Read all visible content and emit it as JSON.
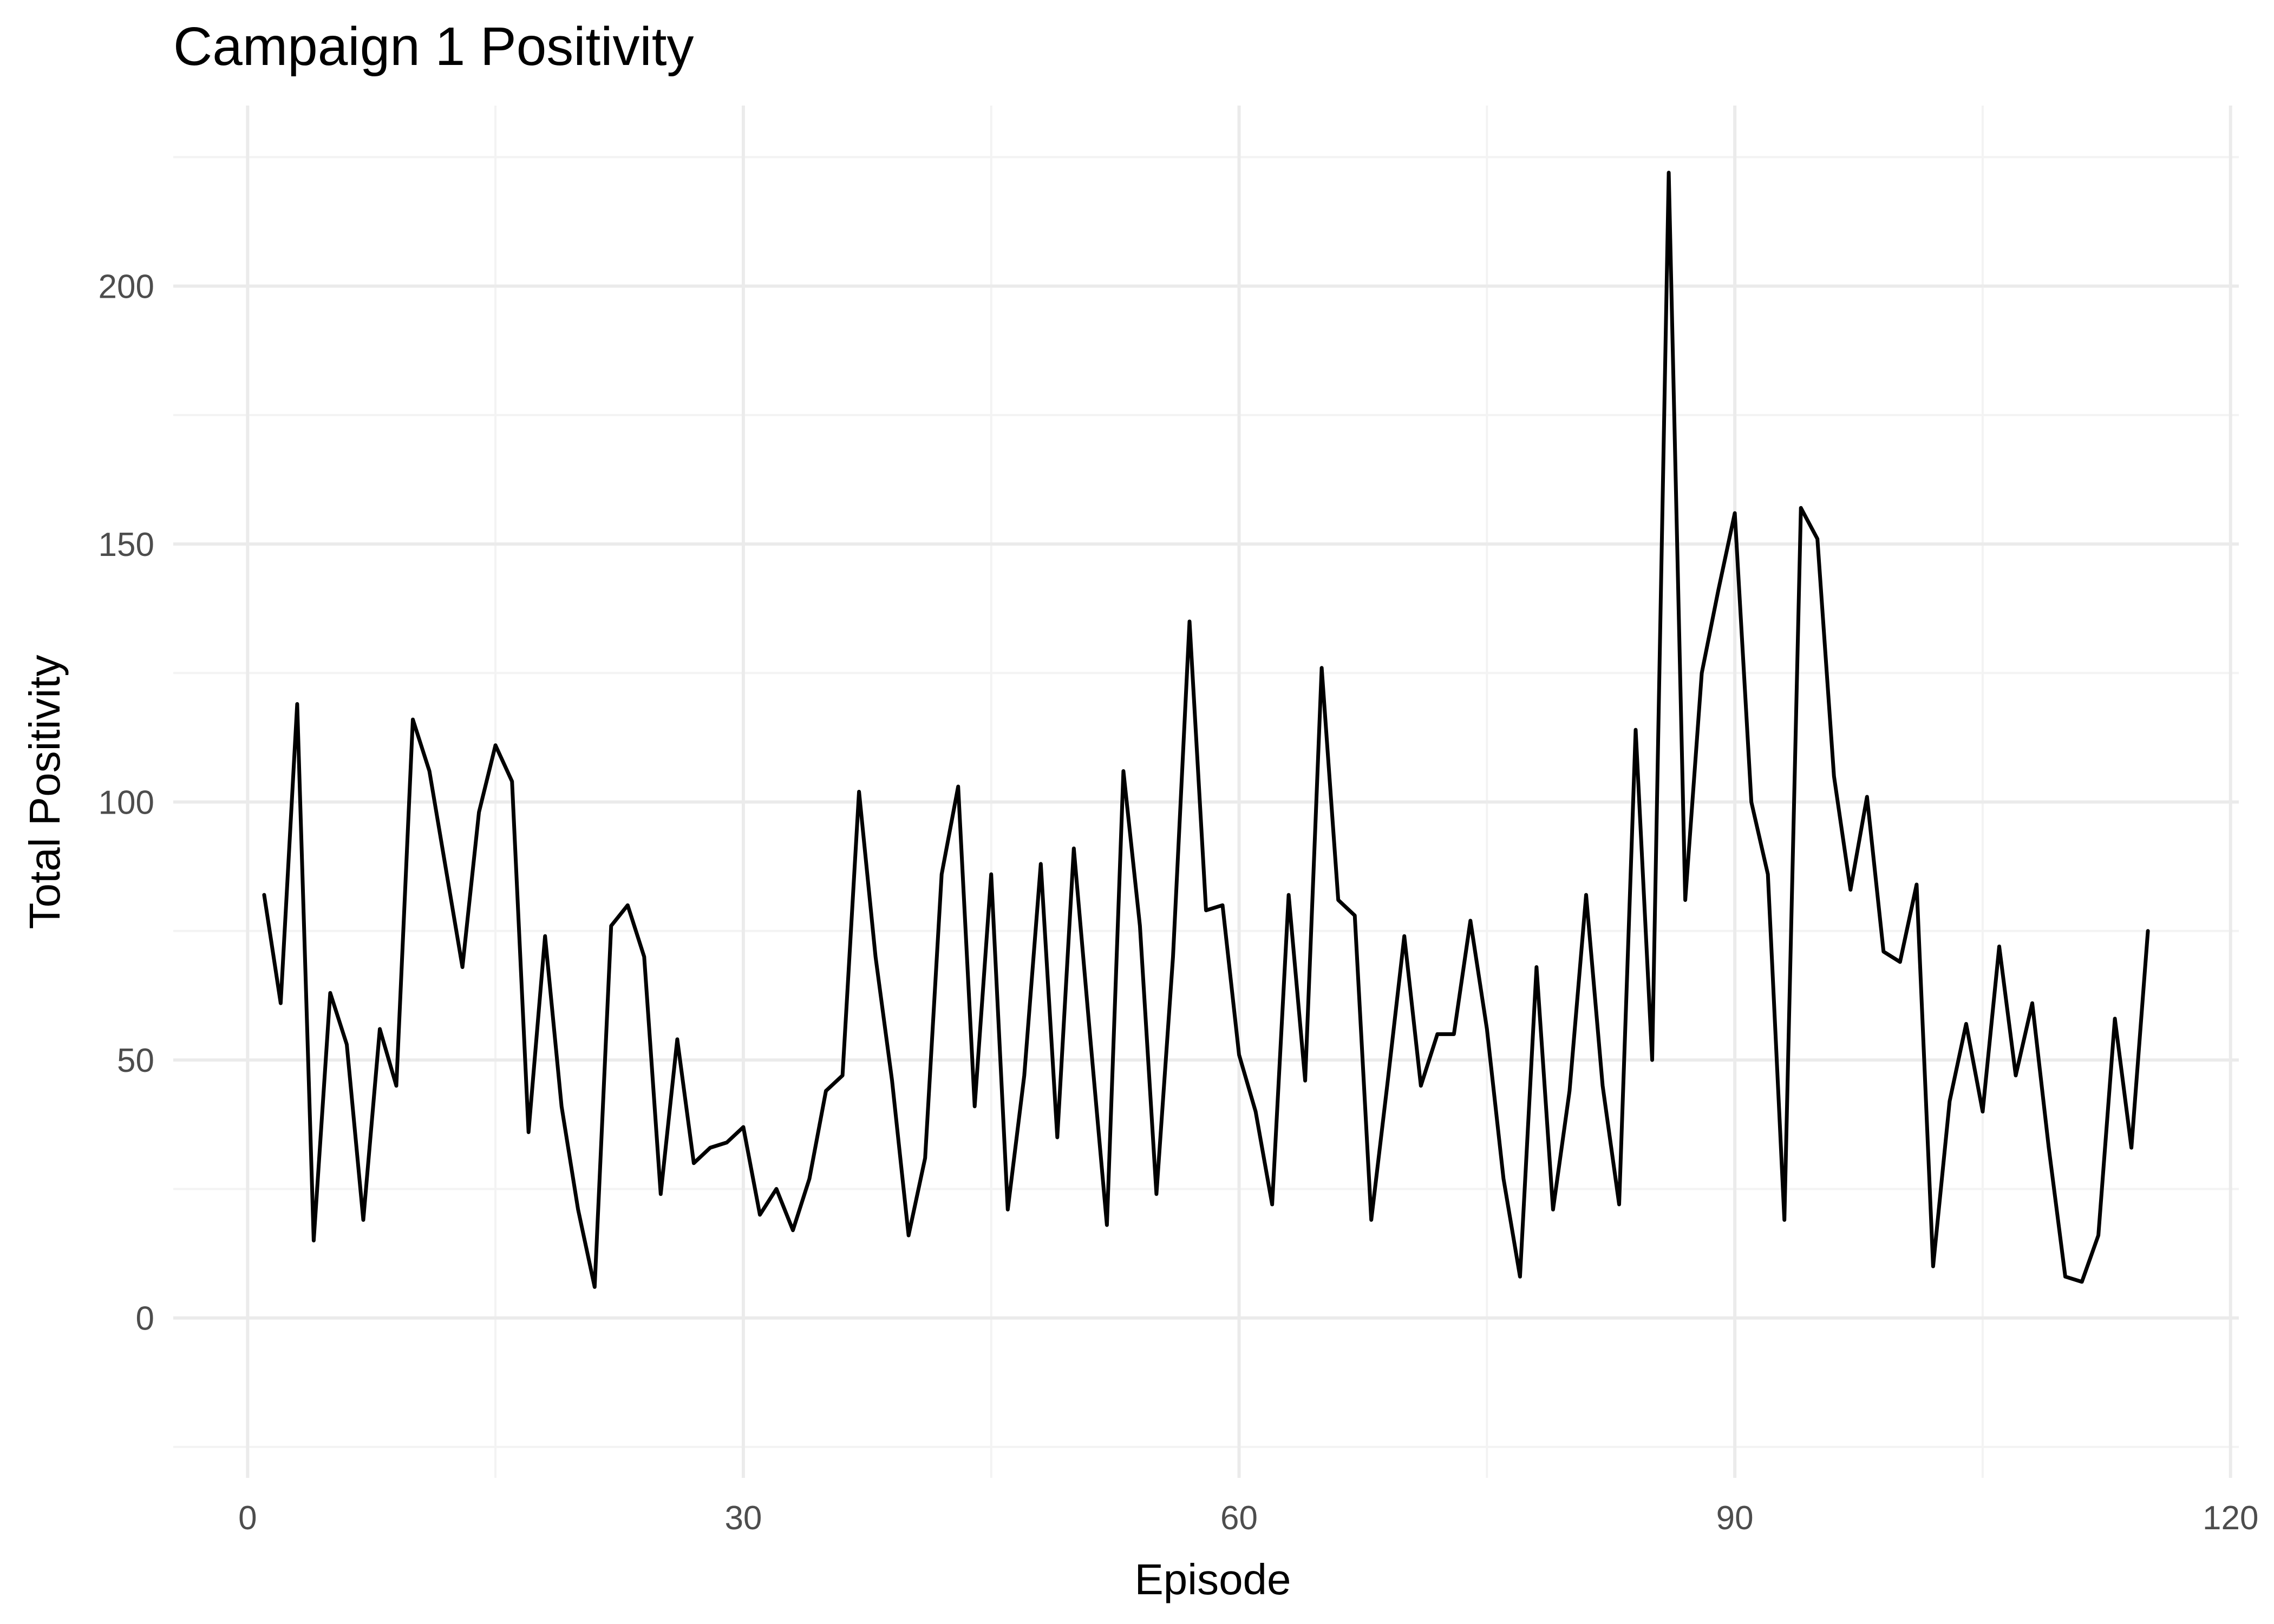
{
  "chart_data": {
    "type": "line",
    "title": "Campaign 1 Positivity",
    "xlabel": "Episode",
    "ylabel": "Total Positivity",
    "xlim": [
      -4.5,
      120.5
    ],
    "ylim": [
      -31,
      235
    ],
    "x_ticks": [
      0,
      30,
      60,
      90,
      120
    ],
    "y_ticks": [
      0,
      50,
      100,
      150,
      200
    ],
    "grid": true,
    "legend": "none",
    "series": [
      {
        "color": "#000000",
        "x": [
          1,
          2,
          3,
          4,
          5,
          6,
          7,
          8,
          9,
          10,
          11,
          12,
          13,
          14,
          15,
          16,
          17,
          18,
          19,
          20,
          21,
          22,
          23,
          24,
          25,
          26,
          27,
          28,
          29,
          30,
          31,
          32,
          33,
          34,
          35,
          36,
          37,
          38,
          39,
          40,
          41,
          42,
          43,
          44,
          45,
          46,
          47,
          48,
          49,
          50,
          51,
          52,
          53,
          54,
          55,
          56,
          57,
          58,
          59,
          60,
          61,
          62,
          63,
          64,
          65,
          66,
          67,
          68,
          69,
          70,
          71,
          72,
          73,
          74,
          75,
          76,
          77,
          78,
          79,
          80,
          81,
          82,
          83,
          84,
          85,
          86,
          87,
          88,
          89,
          90,
          91,
          92,
          93,
          94,
          95,
          96,
          97,
          98,
          99,
          100,
          101,
          102,
          103,
          104,
          105,
          106,
          107,
          108,
          109,
          110,
          111,
          112,
          113,
          114,
          115
        ],
        "y": [
          82,
          61,
          119,
          15,
          63,
          53,
          19,
          56,
          45,
          116,
          106,
          87,
          68,
          98,
          111,
          104,
          36,
          74,
          41,
          21,
          6,
          76,
          80,
          70,
          24,
          54,
          30,
          33,
          34,
          37,
          20,
          25,
          17,
          27,
          44,
          47,
          102,
          70,
          46,
          16,
          31,
          86,
          103,
          41,
          86,
          21,
          47,
          88,
          35,
          91,
          54,
          18,
          106,
          76,
          24,
          70,
          135,
          79,
          80,
          51,
          40,
          22,
          82,
          46,
          126,
          81,
          78,
          19,
          46,
          74,
          45,
          55,
          55,
          77,
          56,
          27,
          8,
          68,
          21,
          44,
          82,
          45,
          22,
          114,
          50,
          222,
          81,
          125,
          141,
          156,
          100,
          86,
          19,
          157,
          151,
          105,
          83,
          101,
          71,
          69,
          84,
          10,
          42,
          57,
          40,
          72,
          47,
          61,
          33,
          8,
          7,
          16,
          58,
          33,
          75
        ]
      }
    ]
  }
}
